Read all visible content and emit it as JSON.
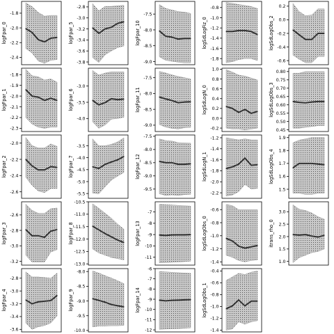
{
  "figure": {
    "layout": "grid 5x5, column-major",
    "x_ticks": "none"
  },
  "chart_data": [
    {
      "type": "line",
      "ylabel": "logFpar_0",
      "yticks": [
        "-1.8",
        "-2.0",
        "-2.2",
        "-2.4"
      ],
      "ticks": [
        -1.8,
        -2.0,
        -2.2,
        -2.4
      ],
      "ylim": [
        -2.5,
        -1.64
      ],
      "series": [
        {
          "name": "median",
          "values": [
            -2.01,
            -2.06,
            -2.16,
            -2.19,
            -2.14,
            -2.13
          ]
        }
      ],
      "band": {
        "upper": [
          -1.66,
          -1.71,
          -1.79,
          -1.84,
          -1.83,
          -1.83
        ],
        "lower": [
          -2.28,
          -2.34,
          -2.45,
          -2.48,
          -2.44,
          -2.43
        ]
      }
    },
    {
      "type": "line",
      "ylabel": "logFpar_1",
      "yticks": [
        "-1.8",
        "-1.9",
        "-2.0",
        "-2.1",
        "-2.2",
        "-2.3"
      ],
      "ticks": [
        -1.8,
        -1.9,
        -2.0,
        -2.1,
        -2.2,
        -2.3
      ],
      "ylim": [
        -2.33,
        -1.74
      ],
      "series": [
        {
          "name": "median",
          "values": [
            -1.94,
            -2.0,
            -2.01,
            -2.04,
            -2.02,
            -2.04
          ]
        }
      ],
      "band": {
        "upper": [
          -1.75,
          -1.81,
          -1.82,
          -1.85,
          -1.84,
          -1.87
        ],
        "lower": [
          -2.2,
          -2.26,
          -2.29,
          -2.3,
          -2.29,
          -2.29
        ]
      }
    },
    {
      "type": "line",
      "ylabel": "logFpar_2",
      "yticks": [
        "-2.0",
        "-2.2",
        "-2.4",
        "-2.6"
      ],
      "ticks": [
        -2.0,
        -2.2,
        -2.4,
        -2.6
      ],
      "ylim": [
        -2.68,
        -1.9
      ],
      "series": [
        {
          "name": "median",
          "values": [
            -2.2,
            -2.28,
            -2.33,
            -2.33,
            -2.29,
            -2.3
          ]
        }
      ],
      "band": {
        "upper": [
          -1.93,
          -2.03,
          -2.06,
          -2.06,
          -2.01,
          -2.04
        ],
        "lower": [
          -2.42,
          -2.52,
          -2.59,
          -2.61,
          -2.56,
          -2.56
        ]
      }
    },
    {
      "type": "line",
      "ylabel": "logFpar_3",
      "yticks": [
        "-2.6",
        "-2.8",
        "-3.0",
        "-3.2"
      ],
      "ticks": [
        -2.6,
        -2.8,
        -3.0,
        -3.2
      ],
      "ylim": [
        -3.25,
        -2.43
      ],
      "series": [
        {
          "name": "median",
          "values": [
            -2.79,
            -2.87,
            -2.87,
            -2.89,
            -2.81,
            -2.79
          ]
        }
      ],
      "band": {
        "upper": [
          -2.46,
          -2.54,
          -2.58,
          -2.58,
          -2.52,
          -2.51
        ],
        "lower": [
          -3.12,
          -3.21,
          -3.21,
          -3.21,
          -3.08,
          -3.05
        ]
      }
    },
    {
      "type": "line",
      "ylabel": "logFpar_4",
      "yticks": [
        "-2.8",
        "-3.0",
        "-3.2",
        "-3.4",
        "-3.6"
      ],
      "ticks": [
        -2.8,
        -3.0,
        -3.2,
        -3.4,
        -3.6
      ],
      "ylim": [
        -3.64,
        -2.65
      ],
      "series": [
        {
          "name": "median",
          "values": [
            -3.14,
            -3.2,
            -3.17,
            -3.16,
            -3.15,
            -3.07
          ]
        }
      ],
      "band": {
        "upper": [
          -2.7,
          -2.78,
          -2.78,
          -2.79,
          -2.8,
          -2.72
        ],
        "lower": [
          -3.5,
          -3.6,
          -3.56,
          -3.54,
          -3.5,
          -3.39
        ]
      }
    },
    {
      "type": "line",
      "ylabel": "logFpar_5",
      "yticks": [
        "-2.8",
        "-3.0",
        "-3.2",
        "-3.4",
        "-3.6",
        "-3.8"
      ],
      "ticks": [
        -2.8,
        -3.0,
        -3.2,
        -3.4,
        -3.6,
        -3.8
      ],
      "ylim": [
        -3.85,
        -2.7
      ],
      "series": [
        {
          "name": "median",
          "values": [
            -3.18,
            -3.28,
            -3.2,
            -3.17,
            -3.1,
            -3.07
          ]
        }
      ],
      "band": {
        "upper": [
          -2.74,
          -2.87,
          -2.79,
          -2.79,
          -2.78,
          -2.77
        ],
        "lower": [
          -3.72,
          -3.81,
          -3.67,
          -3.6,
          -3.54,
          -3.51
        ]
      }
    },
    {
      "type": "line",
      "ylabel": "logFpar_6",
      "yticks": [
        "-3.0",
        "-3.5",
        "-4.0"
      ],
      "ticks": [
        -3.0,
        -3.5,
        -4.0
      ],
      "ylim": [
        -4.4,
        -2.45
      ],
      "series": [
        {
          "name": "median",
          "values": [
            -3.44,
            -3.58,
            -3.51,
            -3.39,
            -3.42,
            -3.4
          ]
        }
      ],
      "band": {
        "upper": [
          -2.52,
          -2.66,
          -2.6,
          -2.56,
          -2.56,
          -2.56
        ],
        "lower": [
          -4.1,
          -4.3,
          -4.2,
          -4.02,
          -4.0,
          -3.96
        ]
      }
    },
    {
      "type": "line",
      "ylabel": "logFpar_7",
      "yticks": [
        "-3.5",
        "-4.0",
        "-4.5",
        "-5.0",
        "-5.5"
      ],
      "ticks": [
        -3.5,
        -4.0,
        -4.5,
        -5.0,
        -5.5
      ],
      "ylim": [
        -5.7,
        -3.05
      ],
      "series": [
        {
          "name": "median",
          "values": [
            -4.38,
            -4.45,
            -4.28,
            -4.18,
            -4.09,
            -3.95
          ]
        }
      ],
      "band": {
        "upper": [
          -3.21,
          -3.5,
          -3.5,
          -3.44,
          -3.34,
          -3.17
        ],
        "lower": [
          -5.48,
          -5.51,
          -5.22,
          -4.94,
          -4.77,
          -4.62
        ]
      }
    },
    {
      "type": "line",
      "ylabel": "logFpar_8",
      "yticks": [
        "-10.5",
        "-11.0",
        "-11.5",
        "-12.0",
        "-12.5",
        "-13.0"
      ],
      "ticks": [
        -10.5,
        -11.0,
        -11.5,
        -12.0,
        -12.5,
        -13.0
      ],
      "ylim": [
        -13.05,
        -10.5
      ],
      "series": [
        {
          "name": "median",
          "values": [
            -11.48,
            -11.63,
            -11.78,
            -11.91,
            -12.04,
            -12.14
          ]
        }
      ],
      "band": {
        "upper": [
          -10.58,
          -10.76,
          -10.96,
          -11.16,
          -11.4,
          -11.6
        ],
        "lower": [
          -12.4,
          -12.56,
          -12.65,
          -12.74,
          -12.79,
          -12.84
        ]
      }
    },
    {
      "type": "line",
      "ylabel": "logFpar_9",
      "yticks": [
        "-8.0",
        "-8.5",
        "-9.0",
        "-9.5",
        "-10.0"
      ],
      "ticks": [
        -8.0,
        -8.5,
        -9.0,
        -9.5,
        -10.0
      ],
      "ylim": [
        -10.05,
        -7.9
      ],
      "series": [
        {
          "name": "median",
          "values": [
            -8.92,
            -8.98,
            -9.04,
            -9.12,
            -9.16,
            -9.2
          ]
        }
      ],
      "band": {
        "upper": [
          -7.98,
          -8.05,
          -8.14,
          -8.22,
          -8.31,
          -8.41
        ],
        "lower": [
          -9.88,
          -9.85,
          -9.85,
          -9.84,
          -9.84,
          -9.83
        ]
      }
    },
    {
      "type": "line",
      "ylabel": "logFpar_10",
      "yticks": [
        "-7.5",
        "-8.0",
        "-8.5",
        "-9.0"
      ],
      "ticks": [
        -7.5,
        -8.0,
        -8.5,
        -9.0
      ],
      "ylim": [
        -9.1,
        -7.1
      ],
      "series": [
        {
          "name": "median",
          "values": [
            -8.03,
            -8.2,
            -8.23,
            -8.29,
            -8.27,
            -8.27
          ]
        }
      ],
      "band": {
        "upper": [
          -7.2,
          -7.32,
          -7.37,
          -7.42,
          -7.44,
          -7.48
        ],
        "lower": [
          -8.85,
          -8.96,
          -8.99,
          -9.02,
          -9.04,
          -9.04
        ]
      }
    },
    {
      "type": "line",
      "ylabel": "logFpar_11",
      "yticks": [
        "-7.5",
        "-8.0",
        "-8.5",
        "-9.0"
      ],
      "ticks": [
        -7.5,
        -8.0,
        -8.5,
        -9.0
      ],
      "ylim": [
        -9.2,
        -7.2
      ],
      "series": [
        {
          "name": "median",
          "values": [
            -8.11,
            -8.17,
            -8.22,
            -8.29,
            -8.27,
            -8.26
          ]
        }
      ],
      "band": {
        "upper": [
          -7.3,
          -7.35,
          -7.41,
          -7.46,
          -7.5,
          -7.54
        ],
        "lower": [
          -8.98,
          -9.06,
          -9.1,
          -9.12,
          -9.08,
          -9.07
        ]
      }
    },
    {
      "type": "line",
      "ylabel": "logFpar_12",
      "yticks": [
        "-7.5",
        "-8.0",
        "-8.5",
        "-9.0",
        "-9.5"
      ],
      "ticks": [
        -7.5,
        -8.0,
        -8.5,
        -9.0,
        -9.5
      ],
      "ylim": [
        -9.85,
        -7.45
      ],
      "series": [
        {
          "name": "median",
          "values": [
            -8.45,
            -8.5,
            -8.5,
            -8.56,
            -8.56,
            -8.54
          ]
        }
      ],
      "band": {
        "upper": [
          -7.6,
          -7.66,
          -7.68,
          -7.74,
          -7.75,
          -7.76
        ],
        "lower": [
          -9.68,
          -9.74,
          -9.72,
          -9.74,
          -9.71,
          -9.7
        ]
      }
    },
    {
      "type": "line",
      "ylabel": "logFpar_13",
      "yticks": [
        "-7",
        "-8",
        "-9",
        "-10",
        "-11"
      ],
      "ticks": [
        -7,
        -8,
        -9,
        -10,
        -11
      ],
      "ylim": [
        -11.7,
        -6.1
      ],
      "series": [
        {
          "name": "median",
          "values": [
            -9.04,
            -9.08,
            -9.03,
            -9.02,
            -9.02,
            -9.0
          ]
        }
      ],
      "band": {
        "upper": [
          -6.32,
          -6.35,
          -6.38,
          -6.42,
          -6.45,
          -6.48
        ],
        "lower": [
          -11.5,
          -11.48,
          -11.45,
          -11.42,
          -11.39,
          -11.35
        ]
      }
    },
    {
      "type": "line",
      "ylabel": "logFpar_14",
      "yticks": [
        "-6",
        "-7",
        "-8",
        "-9",
        "-10",
        "-11",
        "-12"
      ],
      "ticks": [
        -6,
        -7,
        -8,
        -9,
        -10,
        -11,
        -12
      ],
      "ylim": [
        -12.2,
        -6.0
      ],
      "series": [
        {
          "name": "median",
          "values": [
            -9.09,
            -9.16,
            -9.11,
            -9.09,
            -9.06,
            -9.04
          ]
        }
      ],
      "band": {
        "upper": [
          -6.28,
          -6.32,
          -6.36,
          -6.4,
          -6.43,
          -6.46
        ],
        "lower": [
          -11.95,
          -11.92,
          -11.9,
          -11.88,
          -11.84,
          -11.8
        ]
      }
    },
    {
      "type": "line",
      "ylabel": "logSdLogFiz_0",
      "yticks": [
        "-0.8",
        "-1.0",
        "-1.2",
        "-1.4",
        "-1.6",
        "-1.8"
      ],
      "ticks": [
        -0.8,
        -1.0,
        -1.2,
        -1.4,
        -1.6,
        -1.8
      ],
      "ylim": [
        -1.92,
        -0.68
      ],
      "series": [
        {
          "name": "median",
          "values": [
            -1.27,
            -1.27,
            -1.25,
            -1.25,
            -1.27,
            -1.33
          ]
        }
      ],
      "band": {
        "upper": [
          -0.7,
          -0.72,
          -0.74,
          -0.76,
          -0.78,
          -0.82
        ],
        "lower": [
          -1.88,
          -1.86,
          -1.82,
          -1.8,
          -1.8,
          -1.84
        ]
      }
    },
    {
      "type": "line",
      "ylabel": "logSdLogN_0",
      "yticks": [
        "1.0",
        "0.8",
        "0.6",
        "0.4",
        "0.2",
        "0.0",
        "-0.2"
      ],
      "ticks": [
        1.0,
        0.8,
        0.6,
        0.4,
        0.2,
        0.0,
        -0.2
      ],
      "ylim": [
        -0.27,
        1.02
      ],
      "series": [
        {
          "name": "median",
          "values": [
            0.24,
            0.2,
            0.12,
            0.18,
            0.1,
            0.14
          ]
        }
      ],
      "band": {
        "upper": [
          0.99,
          0.94,
          0.88,
          0.86,
          0.82,
          0.78
        ],
        "lower": [
          -0.2,
          -0.22,
          -0.22,
          -0.24,
          -0.22,
          -0.2
        ]
      }
    },
    {
      "type": "line",
      "ylabel": "logSdLogN_1",
      "yticks": [
        "-1.2",
        "-1.4",
        "-1.6",
        "-1.8",
        "-2.0",
        "-2.2"
      ],
      "ticks": [
        -1.2,
        -1.4,
        -1.6,
        -1.8,
        -2.0,
        -2.2
      ],
      "ylim": [
        -2.3,
        -1.15
      ],
      "series": [
        {
          "name": "median",
          "values": [
            -1.76,
            -1.73,
            -1.68,
            -1.57,
            -1.7,
            -1.69
          ]
        }
      ],
      "band": {
        "upper": [
          -1.2,
          -1.22,
          -1.24,
          -1.22,
          -1.24,
          -1.24
        ],
        "lower": [
          -2.26,
          -2.24,
          -2.18,
          -2.05,
          -2.13,
          -2.12
        ]
      }
    },
    {
      "type": "line",
      "ylabel": "logSdLogObs_0",
      "yticks": [
        "-0.6",
        "-0.8",
        "-1.0",
        "-1.2",
        "-1.4"
      ],
      "ticks": [
        -0.6,
        -0.8,
        -1.0,
        -1.2,
        -1.4
      ],
      "ylim": [
        -1.45,
        -0.48
      ],
      "series": [
        {
          "name": "median",
          "values": [
            -1.04,
            -1.08,
            -1.16,
            -1.19,
            -1.17,
            -1.15
          ]
        }
      ],
      "band": {
        "upper": [
          -0.52,
          -0.54,
          -0.6,
          -0.6,
          -0.6,
          -0.6
        ],
        "lower": [
          -1.3,
          -1.33,
          -1.38,
          -1.4,
          -1.38,
          -1.37
        ]
      }
    },
    {
      "type": "line",
      "ylabel": "logSdLogObs_1",
      "yticks": [
        "-0.4",
        "-0.6",
        "-0.8",
        "-1.0",
        "-1.2",
        "-1.4"
      ],
      "ticks": [
        -0.4,
        -0.6,
        -0.8,
        -1.0,
        -1.2,
        -1.4
      ],
      "ylim": [
        -1.43,
        -0.36
      ],
      "series": [
        {
          "name": "median",
          "values": [
            -1.04,
            -0.99,
            -0.89,
            -0.99,
            -0.91,
            -0.91
          ]
        }
      ],
      "band": {
        "upper": [
          -0.56,
          -0.5,
          -0.44,
          -0.46,
          -0.42,
          -0.4
        ],
        "lower": [
          -1.4,
          -1.38,
          -1.26,
          -1.3,
          -1.26,
          -1.24
        ]
      }
    },
    {
      "type": "line",
      "ylabel": "logSdLogObs_2",
      "yticks": [
        "0.2",
        "0.0",
        "-0.2",
        "-0.4",
        "-0.6"
      ],
      "ticks": [
        0.2,
        0.0,
        -0.2,
        -0.4,
        -0.6
      ],
      "ylim": [
        -0.66,
        0.27
      ],
      "series": [
        {
          "name": "median",
          "values": [
            -0.15,
            -0.22,
            -0.29,
            -0.29,
            -0.2,
            -0.2
          ]
        }
      ],
      "band": {
        "upper": [
          0.24,
          0.12,
          0.06,
          0.07,
          0.16,
          0.16
        ],
        "lower": [
          -0.52,
          -0.58,
          -0.63,
          -0.63,
          -0.54,
          -0.54
        ]
      }
    },
    {
      "type": "line",
      "ylabel": "logSdLogObs_3",
      "yticks": [
        "0.80",
        "0.75",
        "0.70",
        "0.65",
        "0.60",
        "0.55",
        "0.50",
        "0.45"
      ],
      "ticks": [
        0.8,
        0.75,
        0.7,
        0.65,
        0.6,
        0.55,
        0.5,
        0.45
      ],
      "ylim": [
        0.44,
        0.82
      ],
      "series": [
        {
          "name": "median",
          "values": [
            0.62,
            0.615,
            0.612,
            0.617,
            0.62,
            0.62
          ]
        }
      ],
      "band": {
        "upper": [
          0.79,
          0.79,
          0.8,
          0.8,
          0.8,
          0.8
        ],
        "lower": [
          0.46,
          0.46,
          0.465,
          0.47,
          0.475,
          0.475
        ]
      }
    },
    {
      "type": "line",
      "ylabel": "logSdLogObs_4",
      "yticks": [
        "1.9",
        "1.8",
        "1.7",
        "1.6",
        "1.5"
      ],
      "ticks": [
        1.9,
        1.8,
        1.7,
        1.6,
        1.5
      ],
      "ylim": [
        1.43,
        1.92
      ],
      "series": [
        {
          "name": "median",
          "values": [
            1.665,
            1.7,
            1.7,
            1.7,
            1.695,
            1.69
          ]
        }
      ],
      "band": {
        "upper": [
          1.86,
          1.88,
          1.89,
          1.9,
          1.9,
          1.9
        ],
        "lower": [
          1.47,
          1.47,
          1.46,
          1.46,
          1.47,
          1.47
        ]
      }
    },
    {
      "type": "line",
      "ylabel": "itrans_rho_0",
      "yticks": [
        "3.0",
        "2.5",
        "2.0",
        "1.5",
        "1.0"
      ],
      "ticks": [
        3.0,
        2.5,
        2.0,
        1.5,
        1.0
      ],
      "ylim": [
        0.85,
        3.4
      ],
      "series": [
        {
          "name": "median",
          "values": [
            2.08,
            2.06,
            2.08,
            2.02,
            1.98,
            2.05
          ]
        }
      ],
      "band": {
        "upper": [
          3.28,
          3.1,
          3.05,
          2.95,
          2.8,
          2.7
        ],
        "lower": [
          0.95,
          1.15,
          1.25,
          1.35,
          1.4,
          1.5
        ]
      }
    }
  ]
}
